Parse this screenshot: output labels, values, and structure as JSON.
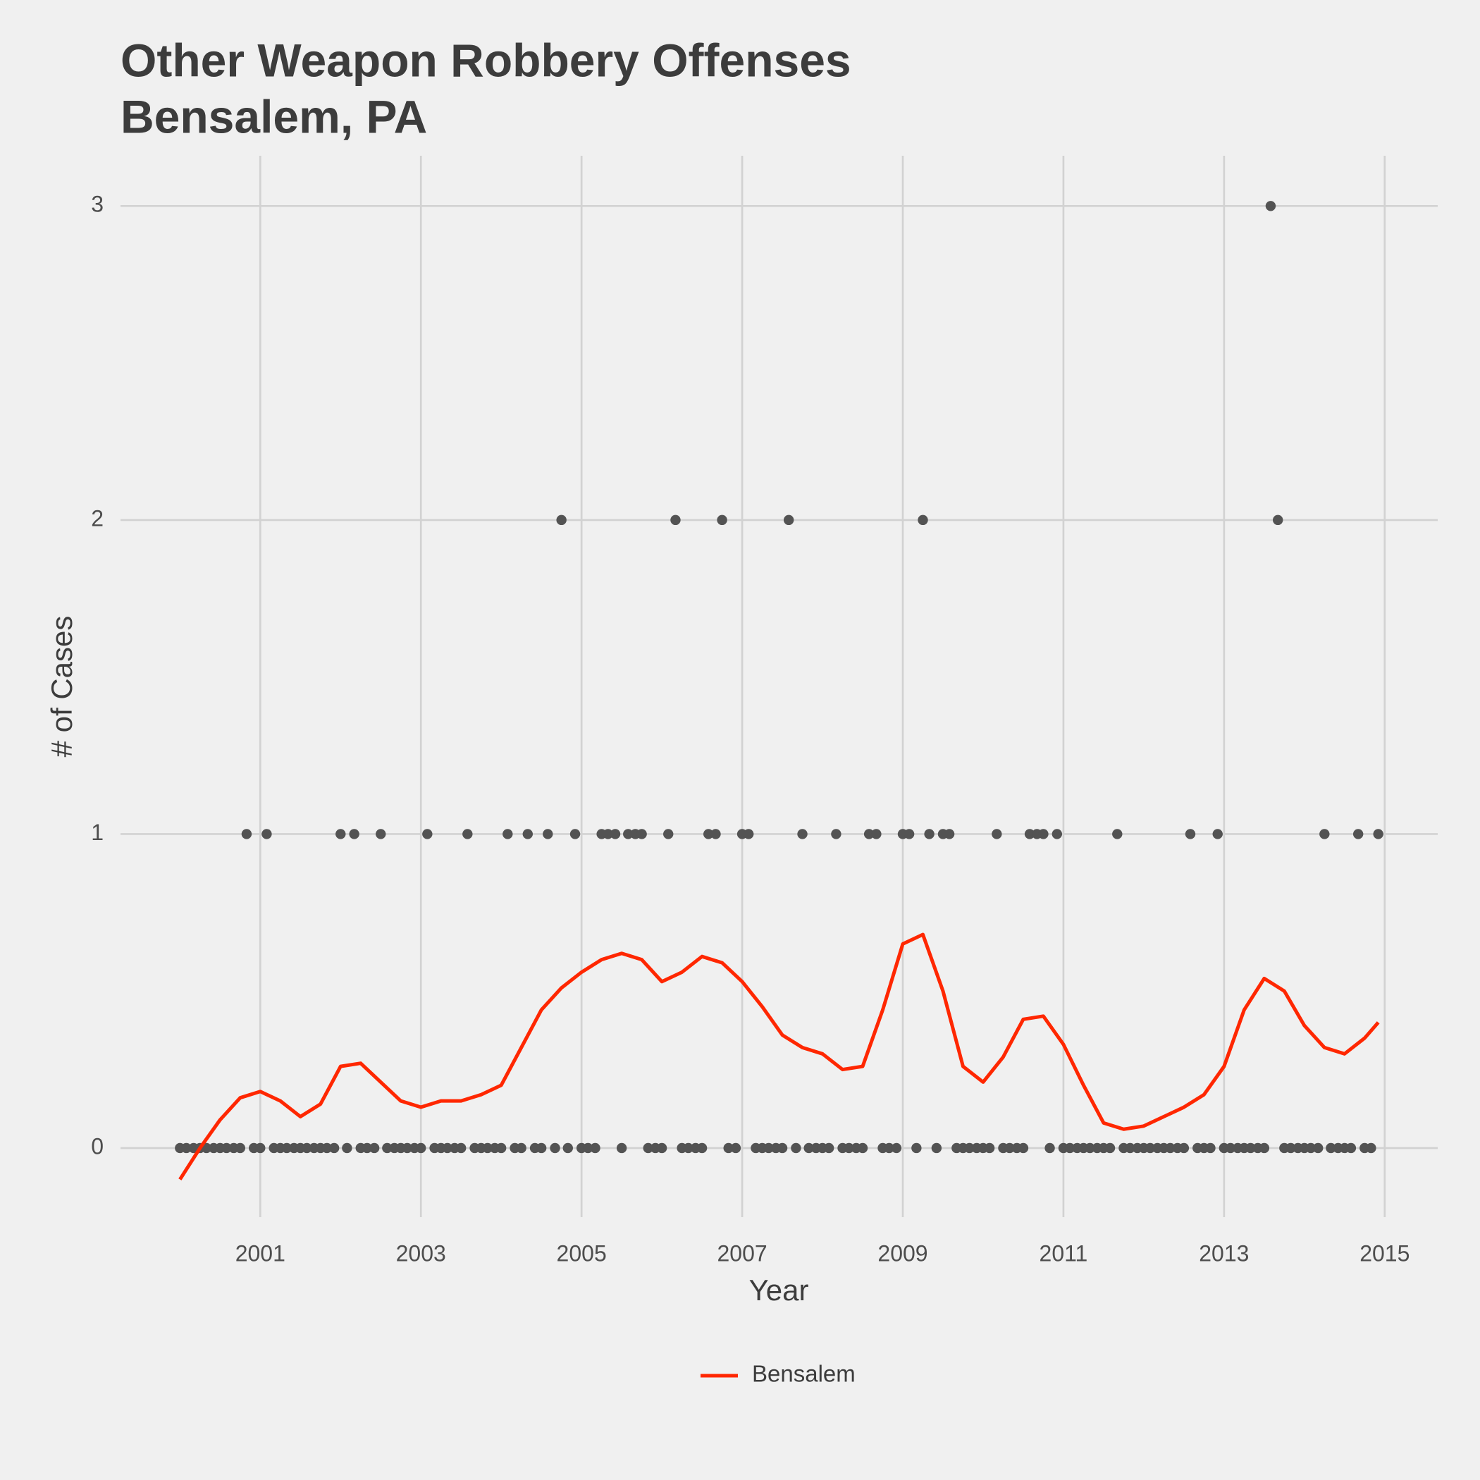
{
  "chart_data": {
    "type": "line",
    "title": "Other Weapon Robbery Offenses",
    "subtitle": "Bensalem, PA",
    "x_label": "Year",
    "y_label": "# of Cases",
    "xlim": [
      1999.26,
      2015.66
    ],
    "ylim": [
      -0.22,
      3.16
    ],
    "xticks": [
      2001,
      2003,
      2005,
      2007,
      2009,
      2011,
      2013,
      2015
    ],
    "yticks": [
      0,
      1,
      2,
      3
    ],
    "grid": true,
    "legend": "bottom",
    "series": [
      {
        "type": "scatter",
        "color": "#535353",
        "x": [
          2000,
          2000.08,
          2000.17,
          2000.25,
          2000.33,
          2000.42,
          2000.5,
          2000.58,
          2000.67,
          2000.75,
          2000.83,
          2000.92,
          2001,
          2001.08,
          2001.17,
          2001.25,
          2001.33,
          2001.42,
          2001.5,
          2001.58,
          2001.67,
          2001.75,
          2001.83,
          2001.92,
          2002,
          2002.08,
          2002.17,
          2002.25,
          2002.33,
          2002.42,
          2002.5,
          2002.58,
          2002.67,
          2002.75,
          2002.83,
          2002.92,
          2003,
          2003.08,
          2003.17,
          2003.25,
          2003.33,
          2003.42,
          2003.5,
          2003.58,
          2003.67,
          2003.75,
          2003.83,
          2003.92,
          2004,
          2004.08,
          2004.17,
          2004.25,
          2004.33,
          2004.42,
          2004.5,
          2004.58,
          2004.67,
          2004.75,
          2004.83,
          2004.92,
          2005,
          2005.08,
          2005.17,
          2005.25,
          2005.33,
          2005.42,
          2005.5,
          2005.58,
          2005.67,
          2005.75,
          2005.83,
          2005.92,
          2006,
          2006.08,
          2006.17,
          2006.25,
          2006.33,
          2006.42,
          2006.5,
          2006.58,
          2006.67,
          2006.75,
          2006.83,
          2006.92,
          2007,
          2007.08,
          2007.17,
          2007.25,
          2007.33,
          2007.42,
          2007.5,
          2007.58,
          2007.67,
          2007.75,
          2007.83,
          2007.92,
          2008,
          2008.08,
          2008.17,
          2008.25,
          2008.33,
          2008.42,
          2008.5,
          2008.58,
          2008.67,
          2008.75,
          2008.83,
          2008.92,
          2009,
          2009.08,
          2009.17,
          2009.25,
          2009.33,
          2009.42,
          2009.5,
          2009.58,
          2009.67,
          2009.75,
          2009.83,
          2009.92,
          2010,
          2010.08,
          2010.17,
          2010.25,
          2010.33,
          2010.42,
          2010.5,
          2010.58,
          2010.67,
          2010.75,
          2010.83,
          2010.92,
          2011,
          2011.08,
          2011.17,
          2011.25,
          2011.33,
          2011.42,
          2011.5,
          2011.58,
          2011.67,
          2011.75,
          2011.83,
          2011.92,
          2012,
          2012.08,
          2012.17,
          2012.25,
          2012.33,
          2012.42,
          2012.5,
          2012.58,
          2012.67,
          2012.75,
          2012.83,
          2012.92,
          2013,
          2013.08,
          2013.17,
          2013.25,
          2013.33,
          2013.42,
          2013.5,
          2013.58,
          2013.67,
          2013.75,
          2013.83,
          2013.92,
          2014,
          2014.08,
          2014.17,
          2014.25,
          2014.33,
          2014.42,
          2014.5,
          2014.58,
          2014.67,
          2014.75,
          2014.83,
          2014.92
        ],
        "values": [
          0,
          0,
          0,
          0,
          0,
          0,
          0,
          0,
          0,
          0,
          1,
          0,
          0,
          1,
          0,
          0,
          0,
          0,
          0,
          0,
          0,
          0,
          0,
          0,
          1,
          0,
          1,
          0,
          0,
          0,
          1,
          0,
          0,
          0,
          0,
          0,
          0,
          1,
          0,
          0,
          0,
          0,
          0,
          1,
          0,
          0,
          0,
          0,
          0,
          1,
          0,
          0,
          1,
          0,
          0,
          1,
          0,
          2,
          0,
          1,
          0,
          0,
          0,
          1,
          1,
          1,
          0,
          1,
          1,
          1,
          0,
          0,
          0,
          1,
          2,
          0,
          0,
          0,
          0,
          1,
          1,
          2,
          0,
          0,
          1,
          1,
          0,
          0,
          0,
          0,
          0,
          2,
          0,
          1,
          0,
          0,
          0,
          0,
          1,
          0,
          0,
          0,
          0,
          1,
          1,
          0,
          0,
          0,
          1,
          1,
          0,
          2,
          1,
          0,
          1,
          1,
          0,
          0,
          0,
          0,
          0,
          0,
          1,
          0,
          0,
          0,
          0,
          1,
          1,
          1,
          0,
          1,
          0,
          0,
          0,
          0,
          0,
          0,
          0,
          0,
          1,
          0,
          0,
          0,
          0,
          0,
          0,
          0,
          0,
          0,
          0,
          1,
          0,
          0,
          0,
          1,
          0,
          0,
          0,
          0,
          0,
          0,
          0,
          3,
          2,
          0,
          0,
          0,
          0,
          0,
          0,
          1,
          0,
          0,
          0,
          0,
          1,
          0,
          0,
          1
        ]
      },
      {
        "type": "line",
        "name": "Bensalem",
        "color": "#ff2700",
        "x": [
          2000,
          2000.25,
          2000.5,
          2000.75,
          2001,
          2001.25,
          2001.5,
          2001.75,
          2002,
          2002.25,
          2002.5,
          2002.75,
          2003,
          2003.25,
          2003.5,
          2003.75,
          2004,
          2004.25,
          2004.5,
          2004.75,
          2005,
          2005.25,
          2005.5,
          2005.75,
          2006,
          2006.25,
          2006.5,
          2006.75,
          2007,
          2007.25,
          2007.5,
          2007.75,
          2008,
          2008.25,
          2008.5,
          2008.75,
          2009,
          2009.25,
          2009.5,
          2009.75,
          2010,
          2010.25,
          2010.5,
          2010.75,
          2011,
          2011.25,
          2011.5,
          2011.75,
          2012,
          2012.25,
          2012.5,
          2012.75,
          2013,
          2013.25,
          2013.5,
          2013.75,
          2014,
          2014.25,
          2014.5,
          2014.75,
          2014.92
        ],
        "values": [
          -0.1,
          0.0,
          0.09,
          0.16,
          0.18,
          0.15,
          0.1,
          0.14,
          0.26,
          0.27,
          0.21,
          0.15,
          0.13,
          0.15,
          0.15,
          0.17,
          0.2,
          0.32,
          0.44,
          0.51,
          0.56,
          0.6,
          0.62,
          0.6,
          0.53,
          0.56,
          0.61,
          0.59,
          0.53,
          0.45,
          0.36,
          0.32,
          0.3,
          0.25,
          0.26,
          0.44,
          0.65,
          0.68,
          0.5,
          0.26,
          0.21,
          0.29,
          0.41,
          0.42,
          0.33,
          0.2,
          0.08,
          0.06,
          0.07,
          0.1,
          0.13,
          0.17,
          0.26,
          0.44,
          0.54,
          0.5,
          0.39,
          0.32,
          0.3,
          0.35,
          0.4
        ]
      }
    ]
  }
}
